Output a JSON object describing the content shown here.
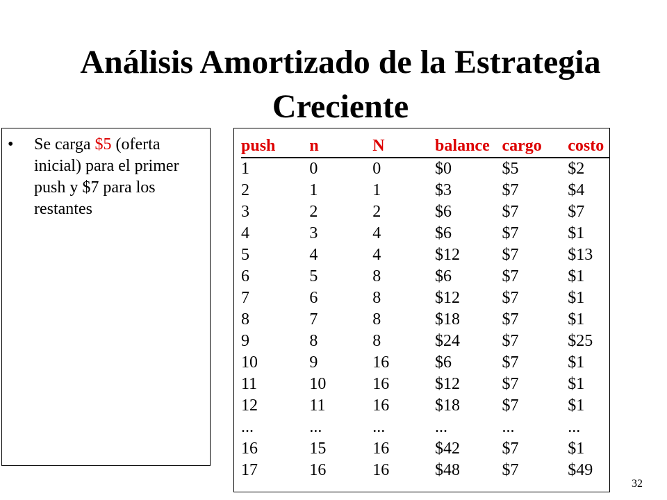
{
  "title": "Análisis Amortizado de la Estrategia Creciente",
  "bullet": {
    "before": "Se carga ",
    "highlight": "$5",
    "after": " (oferta inicial) para el primer push y $7 para los restantes"
  },
  "table": {
    "headers": [
      "push",
      "n",
      "N",
      "balance",
      "cargo",
      "costo"
    ],
    "rows": [
      [
        "1",
        "0",
        "0",
        "$0",
        "$5",
        "$2"
      ],
      [
        "2",
        "1",
        "1",
        "$3",
        "$7",
        "$4"
      ],
      [
        "3",
        "2",
        "2",
        "$6",
        "$7",
        "$7"
      ],
      [
        "4",
        "3",
        "4",
        "$6",
        "$7",
        "$1"
      ],
      [
        "5",
        "4",
        "4",
        "$12",
        "$7",
        "$13"
      ],
      [
        "6",
        "5",
        "8",
        "$6",
        "$7",
        "$1"
      ],
      [
        "7",
        "6",
        "8",
        "$12",
        "$7",
        "$1"
      ],
      [
        "8",
        "7",
        "8",
        "$18",
        "$7",
        "$1"
      ],
      [
        "9",
        "8",
        "8",
        "$24",
        "$7",
        "$25"
      ],
      [
        "10",
        "9",
        "16",
        "$6",
        "$7",
        "$1"
      ],
      [
        "11",
        "10",
        "16",
        "$12",
        "$7",
        "$1"
      ],
      [
        "12",
        "11",
        "16",
        "$18",
        "$7",
        "$1"
      ],
      [
        "...",
        "...",
        "...",
        "...",
        "...",
        "..."
      ],
      [
        "16",
        "15",
        "16",
        "$42",
        "$7",
        "$1"
      ],
      [
        "17",
        "16",
        "16",
        "$48",
        "$7",
        "$49"
      ]
    ]
  },
  "page_number": "32",
  "colors": {
    "header": "#dd0000",
    "highlight": "#dd0000"
  }
}
